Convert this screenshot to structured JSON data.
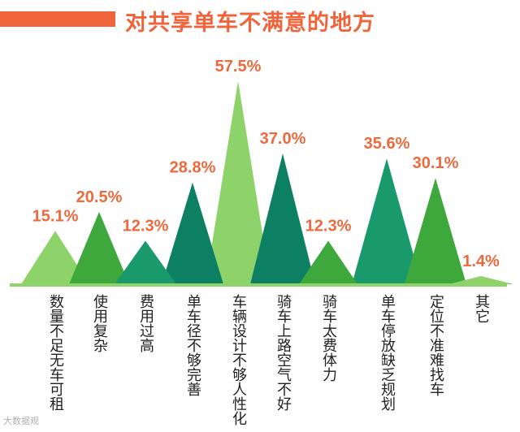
{
  "title": "对共享单车不满意的地方",
  "watermark": "大数据观",
  "colors": {
    "title": "#f0643c",
    "value_label": "#ec6a3d",
    "baseline": "#8fd36b",
    "light_green": "#8ed36a",
    "mid_green": "#3fa83c",
    "teal": "#1a9a6c",
    "dark_teal": "#0d8064"
  },
  "chart_data": {
    "type": "bar",
    "title": "对共享单车不满意的地方",
    "unit": "%",
    "categories": [
      "数量不足无车可租",
      "使用复杂",
      "费用过高",
      "单车径不够完善",
      "车辆设计不够人性化",
      "骑车上路空气不好",
      "骑车太费体力",
      "单车停放缺乏规划",
      "定位不准难找车",
      "其它"
    ],
    "values": [
      15.1,
      20.5,
      12.3,
      28.8,
      57.5,
      37.0,
      12.3,
      35.6,
      30.1,
      1.4
    ],
    "value_labels": [
      "15.1%",
      "20.5%",
      "12.3%",
      "28.8%",
      "57.5%",
      "37.0%",
      "12.3%",
      "35.6%",
      "30.1%",
      "1.4%"
    ],
    "bar_colors": [
      "#8ed36a",
      "#3fa83c",
      "#1a9a6c",
      "#0d8064",
      "#8ed36a",
      "#0d8064",
      "#3fa83c",
      "#1a9a6c",
      "#3fa83c",
      "#8ed36a"
    ],
    "ylim": [
      0,
      60
    ],
    "grid": false,
    "legend": "none"
  }
}
